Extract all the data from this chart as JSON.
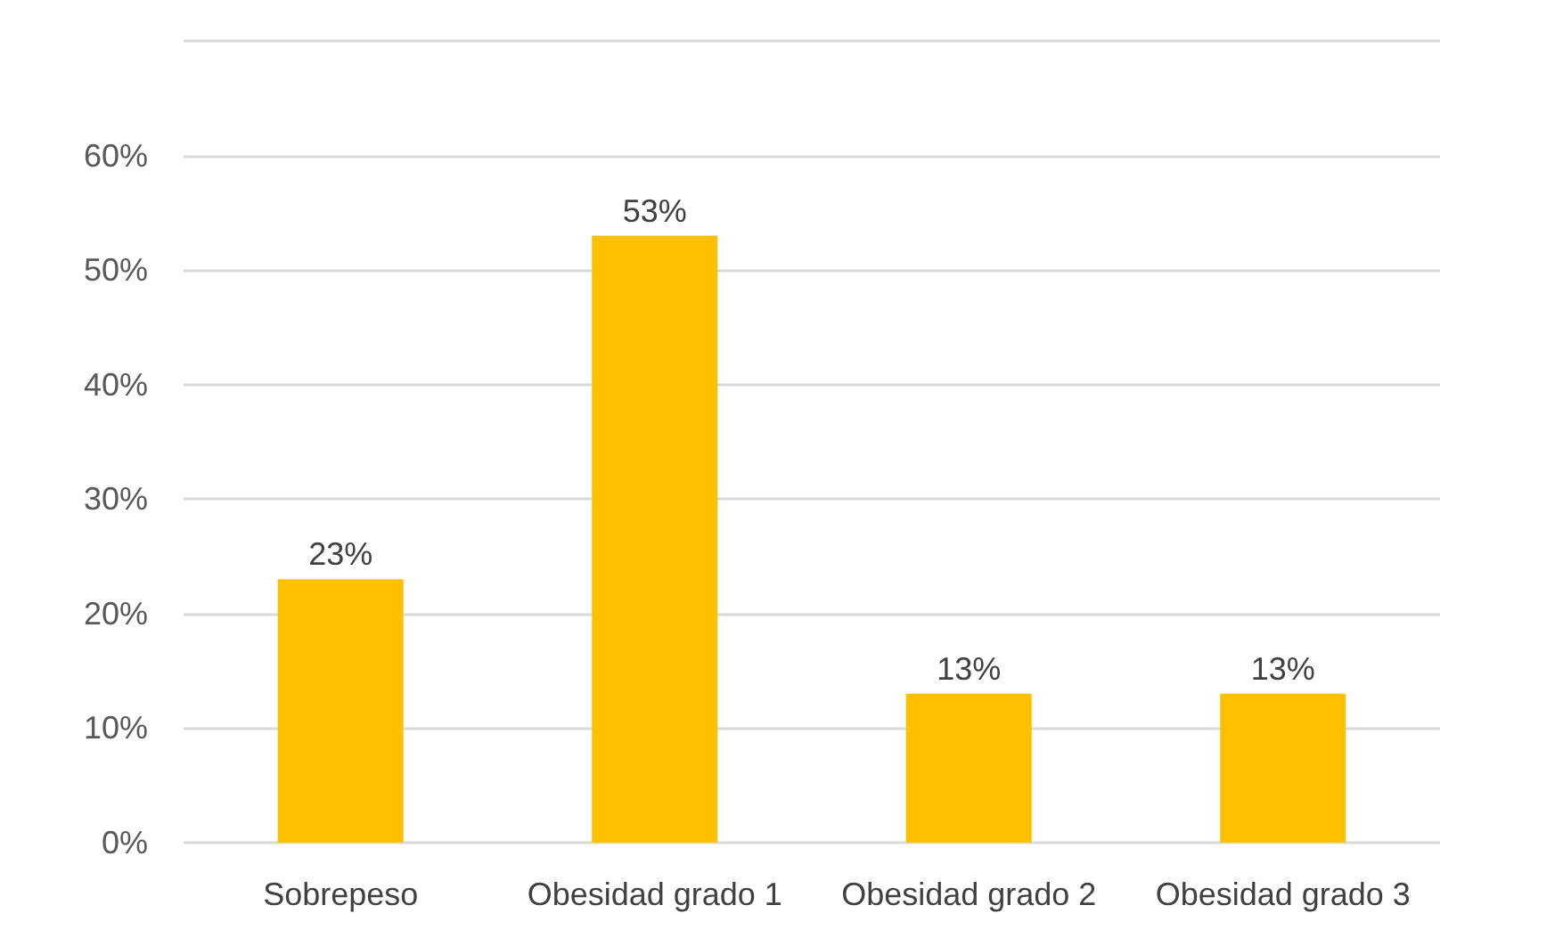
{
  "chart_data": {
    "type": "bar",
    "categories": [
      "Sobrepeso",
      "Obesidad grado 1",
      "Obesidad grado 2",
      "Obesidad grado 3"
    ],
    "values": [
      23,
      53,
      13,
      13
    ],
    "value_labels": [
      "23%",
      "53%",
      "13%",
      "13%"
    ],
    "color": "#ffc000",
    "ylim": [
      0,
      70
    ],
    "yticks": [
      {
        "value": 0,
        "label": "0%"
      },
      {
        "value": 10,
        "label": "10%"
      },
      {
        "value": 20,
        "label": "20%"
      },
      {
        "value": 30,
        "label": "30%"
      },
      {
        "value": 40,
        "label": "40%"
      },
      {
        "value": 50,
        "label": "50%"
      },
      {
        "value": 60,
        "label": "60%"
      },
      {
        "value": 70,
        "label": null
      }
    ],
    "grid": "y"
  }
}
